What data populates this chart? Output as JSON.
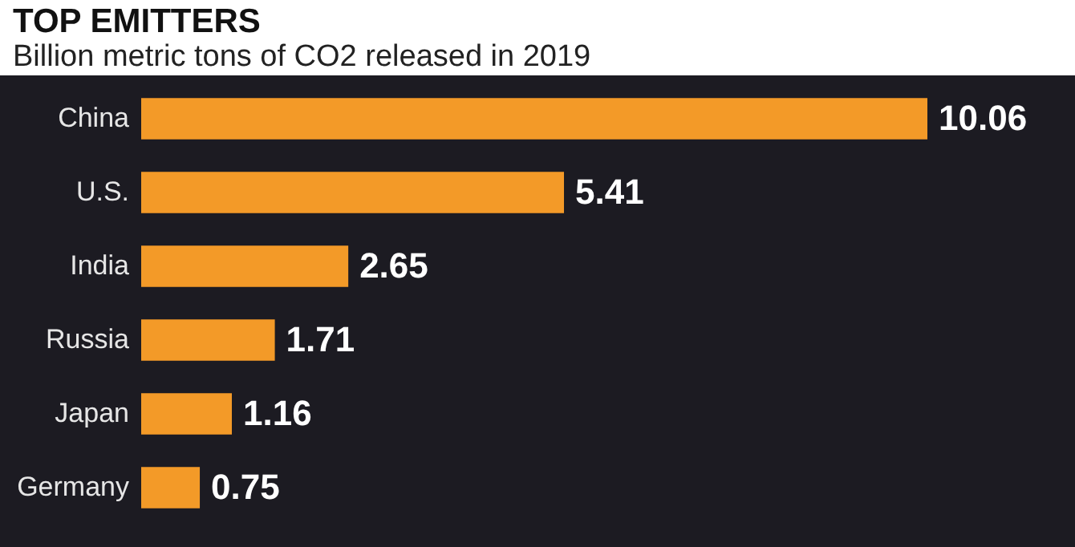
{
  "chart_data": {
    "type": "bar",
    "orientation": "horizontal",
    "title": "TOP EMITTERS",
    "subtitle": "Billion metric tons of CO2 released in 2019",
    "categories": [
      "China",
      "U.S.",
      "India",
      "Russia",
      "Japan",
      "Germany"
    ],
    "values": [
      10.06,
      5.41,
      2.65,
      1.71,
      1.16,
      0.75
    ],
    "color": "#f39a28",
    "data_labels": true
  }
}
